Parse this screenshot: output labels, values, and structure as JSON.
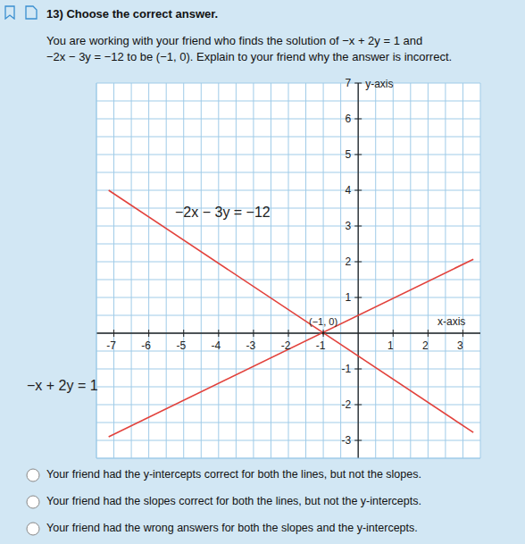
{
  "header": {
    "title": "13) Choose the correct answer."
  },
  "question": [
    "You are working with your friend who finds the solution of −x + 2y = 1 and",
    "−2x − 3y = −12 to be (−1, 0). Explain to your friend why the answer is incorrect."
  ],
  "chart_data": {
    "type": "line",
    "xlabel": "x-axis",
    "ylabel": "y-axis",
    "x": [
      -7.15,
      3.3
    ],
    "series": [
      {
        "name": "−2x − 3y = −12",
        "color": "#e2423c",
        "values": [
          4.0,
          -2.78
        ]
      },
      {
        "name": "−x + 2y = 1",
        "color": "#e2423c",
        "values": [
          -2.9,
          2.07
        ]
      }
    ],
    "xlim": [
      -7.5,
      3.5
    ],
    "ylim": [
      -3.5,
      7
    ],
    "xticks": [
      -7,
      -6,
      -5,
      -4,
      -3,
      -2,
      -1,
      1,
      2,
      3
    ],
    "yticks": [
      -3,
      -2,
      -1,
      1,
      2,
      3,
      4,
      5,
      6,
      7
    ],
    "grid": true,
    "annotations": [
      {
        "x": -1,
        "y": 0,
        "label": "(−1, 0)"
      }
    ]
  },
  "options": [
    "Your friend had the y-intercepts correct for both the lines, but not the slopes.",
    "Your friend had the slopes correct for both the lines, but not the y-intercepts.",
    "Your friend had the wrong answers for both the slopes and the y-intercepts."
  ]
}
